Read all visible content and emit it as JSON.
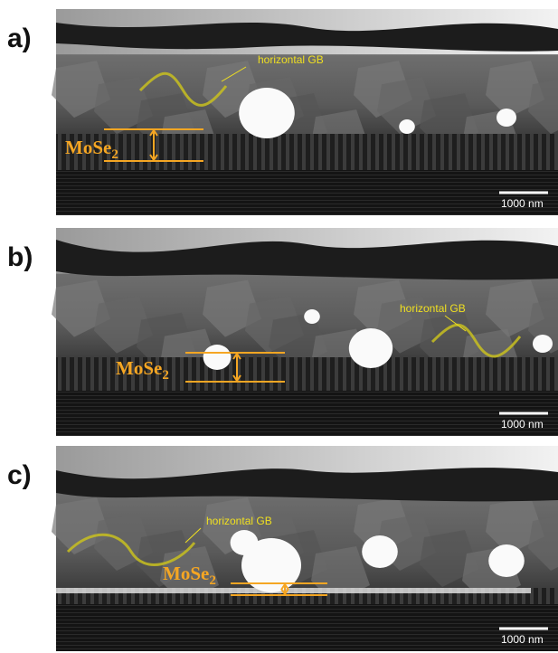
{
  "panels": [
    {
      "label": "a)",
      "annotation": "horizontal GB",
      "layer_label": {
        "text": "MoSe",
        "subscript": "2"
      },
      "scale_bar": "1000 nm"
    },
    {
      "label": "b)",
      "annotation": "horizontal GB",
      "layer_label": {
        "text": "MoSe",
        "subscript": "2"
      },
      "scale_bar": "1000 nm"
    },
    {
      "label": "c)",
      "annotation": "horizontal GB",
      "layer_label": {
        "text": "MoSe",
        "subscript": "2"
      },
      "scale_bar": "1000 nm"
    }
  ]
}
